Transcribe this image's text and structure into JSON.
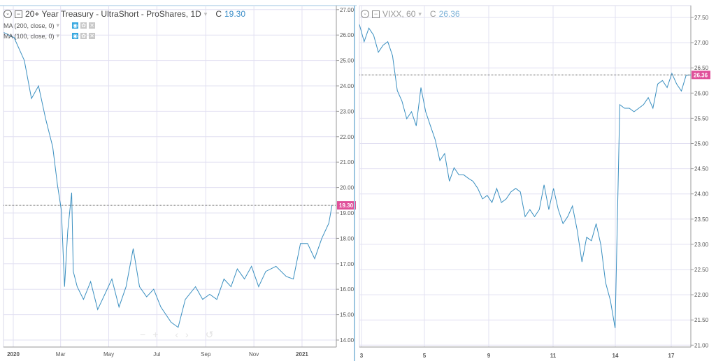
{
  "left_chart": {
    "title": "20+ Year Treasury - UltraShort - ProShares, 1D",
    "close_prefix": "C",
    "close_value": "19.30",
    "indicators": [
      {
        "label": "MA (200, close, 0)"
      },
      {
        "label": "MA (100, close, 0)"
      }
    ],
    "line_color": "#3a8fc0",
    "price_tag_color": "#e0509a",
    "chart_data": {
      "type": "line",
      "ylim": [
        14,
        27
      ],
      "y_ticks": [
        "14.00",
        "15.00",
        "16.00",
        "17.00",
        "18.00",
        "19.00",
        "20.00",
        "21.00",
        "22.00",
        "23.00",
        "24.00",
        "25.00",
        "26.00",
        "27.00"
      ],
      "x_ticks": [
        {
          "label": "2020",
          "date": "2020-01-01"
        },
        {
          "label": "Mar",
          "date": "2020-03-01"
        },
        {
          "label": "May",
          "date": "2020-05-01"
        },
        {
          "label": "Jul",
          "date": "2020-07-01"
        },
        {
          "label": "Sep",
          "date": "2020-09-01"
        },
        {
          "label": "Nov",
          "date": "2020-11-01"
        },
        {
          "label": "2021",
          "date": "2021-01-01"
        }
      ],
      "series": [
        [
          [
            "2019-12-20",
            26.1
          ],
          [
            "2020-01-02",
            25.9
          ],
          [
            "2020-01-15",
            25.0
          ],
          [
            "2020-01-24",
            23.5
          ],
          [
            "2020-02-02",
            24.0
          ],
          [
            "2020-02-11",
            22.7
          ],
          [
            "2020-02-20",
            21.6
          ],
          [
            "2020-02-26",
            20.1
          ],
          [
            "2020-03-02",
            19.1
          ],
          [
            "2020-03-06",
            16.1
          ],
          [
            "2020-03-10",
            18.3
          ],
          [
            "2020-03-15",
            19.8
          ],
          [
            "2020-03-17",
            16.7
          ],
          [
            "2020-03-22",
            16.1
          ],
          [
            "2020-03-30",
            15.6
          ],
          [
            "2020-04-08",
            16.3
          ],
          [
            "2020-04-17",
            15.2
          ],
          [
            "2020-04-26",
            15.8
          ],
          [
            "2020-05-05",
            16.4
          ],
          [
            "2020-05-14",
            15.3
          ],
          [
            "2020-05-23",
            16.1
          ],
          [
            "2020-06-01",
            17.6
          ],
          [
            "2020-06-09",
            16.1
          ],
          [
            "2020-06-18",
            15.7
          ],
          [
            "2020-06-27",
            16.0
          ],
          [
            "2020-07-06",
            15.3
          ],
          [
            "2020-07-19",
            14.7
          ],
          [
            "2020-07-28",
            14.5
          ],
          [
            "2020-08-06",
            15.6
          ],
          [
            "2020-08-19",
            16.1
          ],
          [
            "2020-08-28",
            15.6
          ],
          [
            "2020-09-06",
            15.8
          ],
          [
            "2020-09-15",
            15.6
          ],
          [
            "2020-09-24",
            16.4
          ],
          [
            "2020-10-03",
            16.1
          ],
          [
            "2020-10-11",
            16.8
          ],
          [
            "2020-10-20",
            16.4
          ],
          [
            "2020-10-29",
            16.9
          ],
          [
            "2020-11-07",
            16.1
          ],
          [
            "2020-11-16",
            16.7
          ],
          [
            "2020-11-29",
            16.9
          ],
          [
            "2020-12-12",
            16.5
          ],
          [
            "2020-12-21",
            16.4
          ],
          [
            "2020-12-30",
            17.8
          ],
          [
            "2021-01-08",
            17.8
          ],
          [
            "2021-01-17",
            17.2
          ],
          [
            "2021-01-26",
            18.0
          ],
          [
            "2021-02-04",
            18.6
          ],
          [
            "2021-02-08",
            19.3
          ]
        ]
      ],
      "last_value": 19.3
    },
    "nav_controls": [
      "−",
      "+",
      "‹",
      "›",
      "↺"
    ]
  },
  "right_chart": {
    "title": "VIXX, 60",
    "close_prefix": "C",
    "close_value": "26.36",
    "line_color": "#3a8fc0",
    "price_tag_color": "#e0509a",
    "chart_data": {
      "type": "line",
      "ylim": [
        21.0,
        27.5
      ],
      "y_ticks": [
        "21.00",
        "21.50",
        "22.00",
        "22.50",
        "23.00",
        "23.50",
        "24.00",
        "24.50",
        "25.00",
        "25.50",
        "26.00",
        "26.50",
        "27.00",
        "27.50"
      ],
      "x_ticks": [
        "3",
        "5",
        "9",
        "11",
        "14",
        "17"
      ],
      "values": [
        27.36,
        27.02,
        27.29,
        27.15,
        26.81,
        26.95,
        27.02,
        26.74,
        26.05,
        25.84,
        25.49,
        25.63,
        25.35,
        26.11,
        25.63,
        25.35,
        25.08,
        24.66,
        24.8,
        24.25,
        24.52,
        24.38,
        24.38,
        24.31,
        24.25,
        24.11,
        23.9,
        23.97,
        23.83,
        24.11,
        23.83,
        23.9,
        24.04,
        24.11,
        24.04,
        23.55,
        23.69,
        23.55,
        23.69,
        24.18,
        23.69,
        24.11,
        23.69,
        23.41,
        23.55,
        23.76,
        23.28,
        22.65,
        23.14,
        23.07,
        23.41,
        22.99,
        22.24,
        21.89,
        21.34,
        25.77,
        25.7,
        25.7,
        25.63,
        25.7,
        25.77,
        25.91,
        25.7,
        26.18,
        26.25,
        26.11,
        26.39,
        26.18,
        26.04,
        26.35,
        26.36
      ],
      "last_value": 26.36
    }
  }
}
